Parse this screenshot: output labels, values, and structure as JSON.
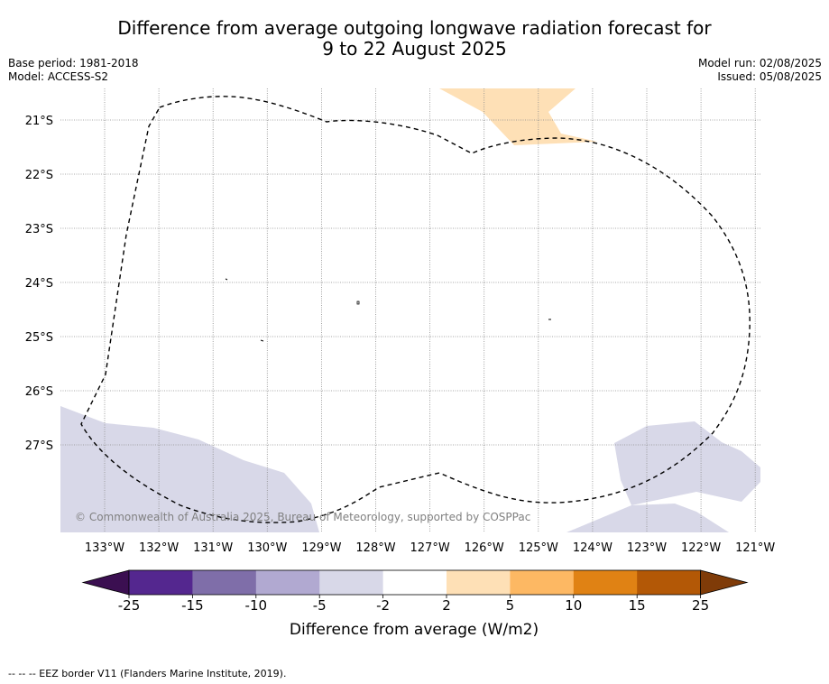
{
  "header": {
    "title_line1": "Difference from average outgoing longwave radiation forecast for",
    "title_line2": "9 to 22 August 2025",
    "base_period": "Base period: 1981-2018",
    "model": "Model: ACCESS-S2",
    "model_run": "Model run: 02/08/2025",
    "issued": "Issued: 05/08/2025"
  },
  "map": {
    "lat_labels": [
      "21°S",
      "22°S",
      "23°S",
      "24°S",
      "25°S",
      "26°S",
      "27°S"
    ],
    "lon_labels": [
      "133°W",
      "132°W",
      "131°W",
      "130°W",
      "129°W",
      "128°W",
      "127°W",
      "126°W",
      "125°W",
      "124°W",
      "123°W",
      "122°W",
      "121°W"
    ],
    "copyright": "© Commonwealth of Australia 2025, Bureau of Meteorology, supported by COSPPac"
  },
  "colorbar": {
    "ticks": [
      "-25",
      "-15",
      "-10",
      "-5",
      "-2",
      "2",
      "5",
      "10",
      "15",
      "25"
    ],
    "colors": [
      "#3b0f51",
      "#54278f",
      "#7f6ea9",
      "#b1a9d1",
      "#d8d8e8",
      "#ffffff",
      "#fee0b6",
      "#fdb863",
      "#e08214",
      "#b35806",
      "#7f3b08"
    ],
    "label": "Difference from average (W/m2)"
  },
  "footer": {
    "legend": "--  --  -- EEZ border V11 (Flanders Marine Institute, 2019)."
  }
}
